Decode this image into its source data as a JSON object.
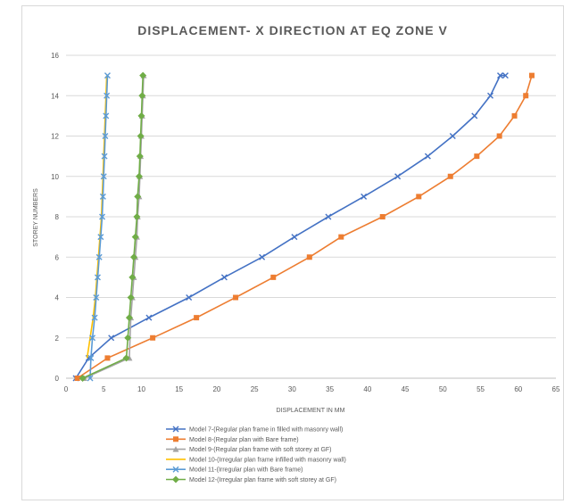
{
  "chart_data": {
    "type": "line",
    "title": "DISPLACEMENT- X DIRECTION AT EQ ZONE V",
    "xlabel": "DISPLACEMENT IN MM",
    "ylabel": "STOREY NUMBERS",
    "xlim": [
      0,
      65
    ],
    "ylim": [
      0,
      16
    ],
    "xticks": [
      0,
      5,
      10,
      15,
      20,
      25,
      30,
      35,
      40,
      45,
      50,
      55,
      60,
      65
    ],
    "yticks": [
      0,
      2,
      4,
      6,
      8,
      10,
      12,
      14,
      16
    ],
    "grid": "horizontal",
    "legend_position": "bottom",
    "series": [
      {
        "name": "Model 7-(Regular plan frame in filled with masonry wall)",
        "color": "#4472c4",
        "marker": "x",
        "x": [
          1.3,
          3.0,
          6.0,
          11.0,
          16.3,
          21.0,
          26.0,
          30.3,
          34.8,
          39.5,
          44.0,
          48.0,
          51.3,
          54.2,
          56.3,
          57.6,
          58.3
        ],
        "y": [
          0,
          1,
          2,
          3,
          4,
          5,
          6,
          7,
          8,
          9,
          10,
          11,
          12,
          13,
          14,
          15,
          15
        ]
      },
      {
        "name": "Model 8-(Regular plan with Bare frame)",
        "color": "#ed7d31",
        "marker": "square",
        "x": [
          1.5,
          5.5,
          11.5,
          17.3,
          22.5,
          27.5,
          32.3,
          36.5,
          42.0,
          46.8,
          51.0,
          54.5,
          57.5,
          59.5,
          61.0,
          61.8
        ],
        "y": [
          0,
          1,
          2,
          3,
          4,
          5,
          6,
          7,
          8,
          9,
          10,
          11,
          12,
          13,
          14,
          15
        ]
      },
      {
        "name": "Model 9-(Regular plan frame with soft storey at GF)",
        "color": "#a5a5a5",
        "marker": "triangle",
        "x": [
          2.4,
          8.4,
          8.6,
          8.8,
          9.0,
          9.2,
          9.4,
          9.5,
          9.7,
          9.8,
          9.9,
          10.0,
          10.1,
          10.2,
          10.3
        ],
        "y": [
          0,
          1,
          3,
          4,
          5,
          6,
          7,
          8,
          9,
          10,
          11,
          12,
          13,
          14,
          15
        ]
      },
      {
        "name": "Model 10-(Irregular plan frame infilled with masonry wall)",
        "color": "#ffc000",
        "marker": "none",
        "x": [
          2.8,
          3.2,
          3.6,
          3.9,
          4.1,
          4.3,
          4.5,
          4.7,
          4.8,
          4.9,
          5.0,
          5.1,
          5.2,
          5.3,
          5.4
        ],
        "y": [
          1,
          2,
          3,
          4,
          5,
          6,
          7,
          8,
          9,
          10,
          11,
          12,
          13,
          14,
          15
        ]
      },
      {
        "name": "Model 11-(Irregular plan with Bare frame)",
        "color": "#5b9bd5",
        "marker": "x",
        "x": [
          3.2,
          3.3,
          3.5,
          3.8,
          4.0,
          4.2,
          4.4,
          4.6,
          4.8,
          4.9,
          5.0,
          5.1,
          5.2,
          5.3,
          5.4,
          5.5
        ],
        "y": [
          0,
          1,
          2,
          3,
          4,
          5,
          6,
          7,
          8,
          9,
          10,
          11,
          12,
          13,
          14,
          15
        ]
      },
      {
        "name": "Model 12-(Irregular plan frame with soft storey at GF)",
        "color": "#70ad47",
        "marker": "diamond",
        "x": [
          2.2,
          8.0,
          8.2,
          8.4,
          8.6,
          8.8,
          9.0,
          9.2,
          9.4,
          9.5,
          9.7,
          9.8,
          9.9,
          10.0,
          10.1,
          10.2
        ],
        "y": [
          0,
          1,
          2,
          3,
          4,
          5,
          6,
          7,
          8,
          9,
          10,
          11,
          12,
          13,
          14,
          15
        ]
      }
    ]
  }
}
